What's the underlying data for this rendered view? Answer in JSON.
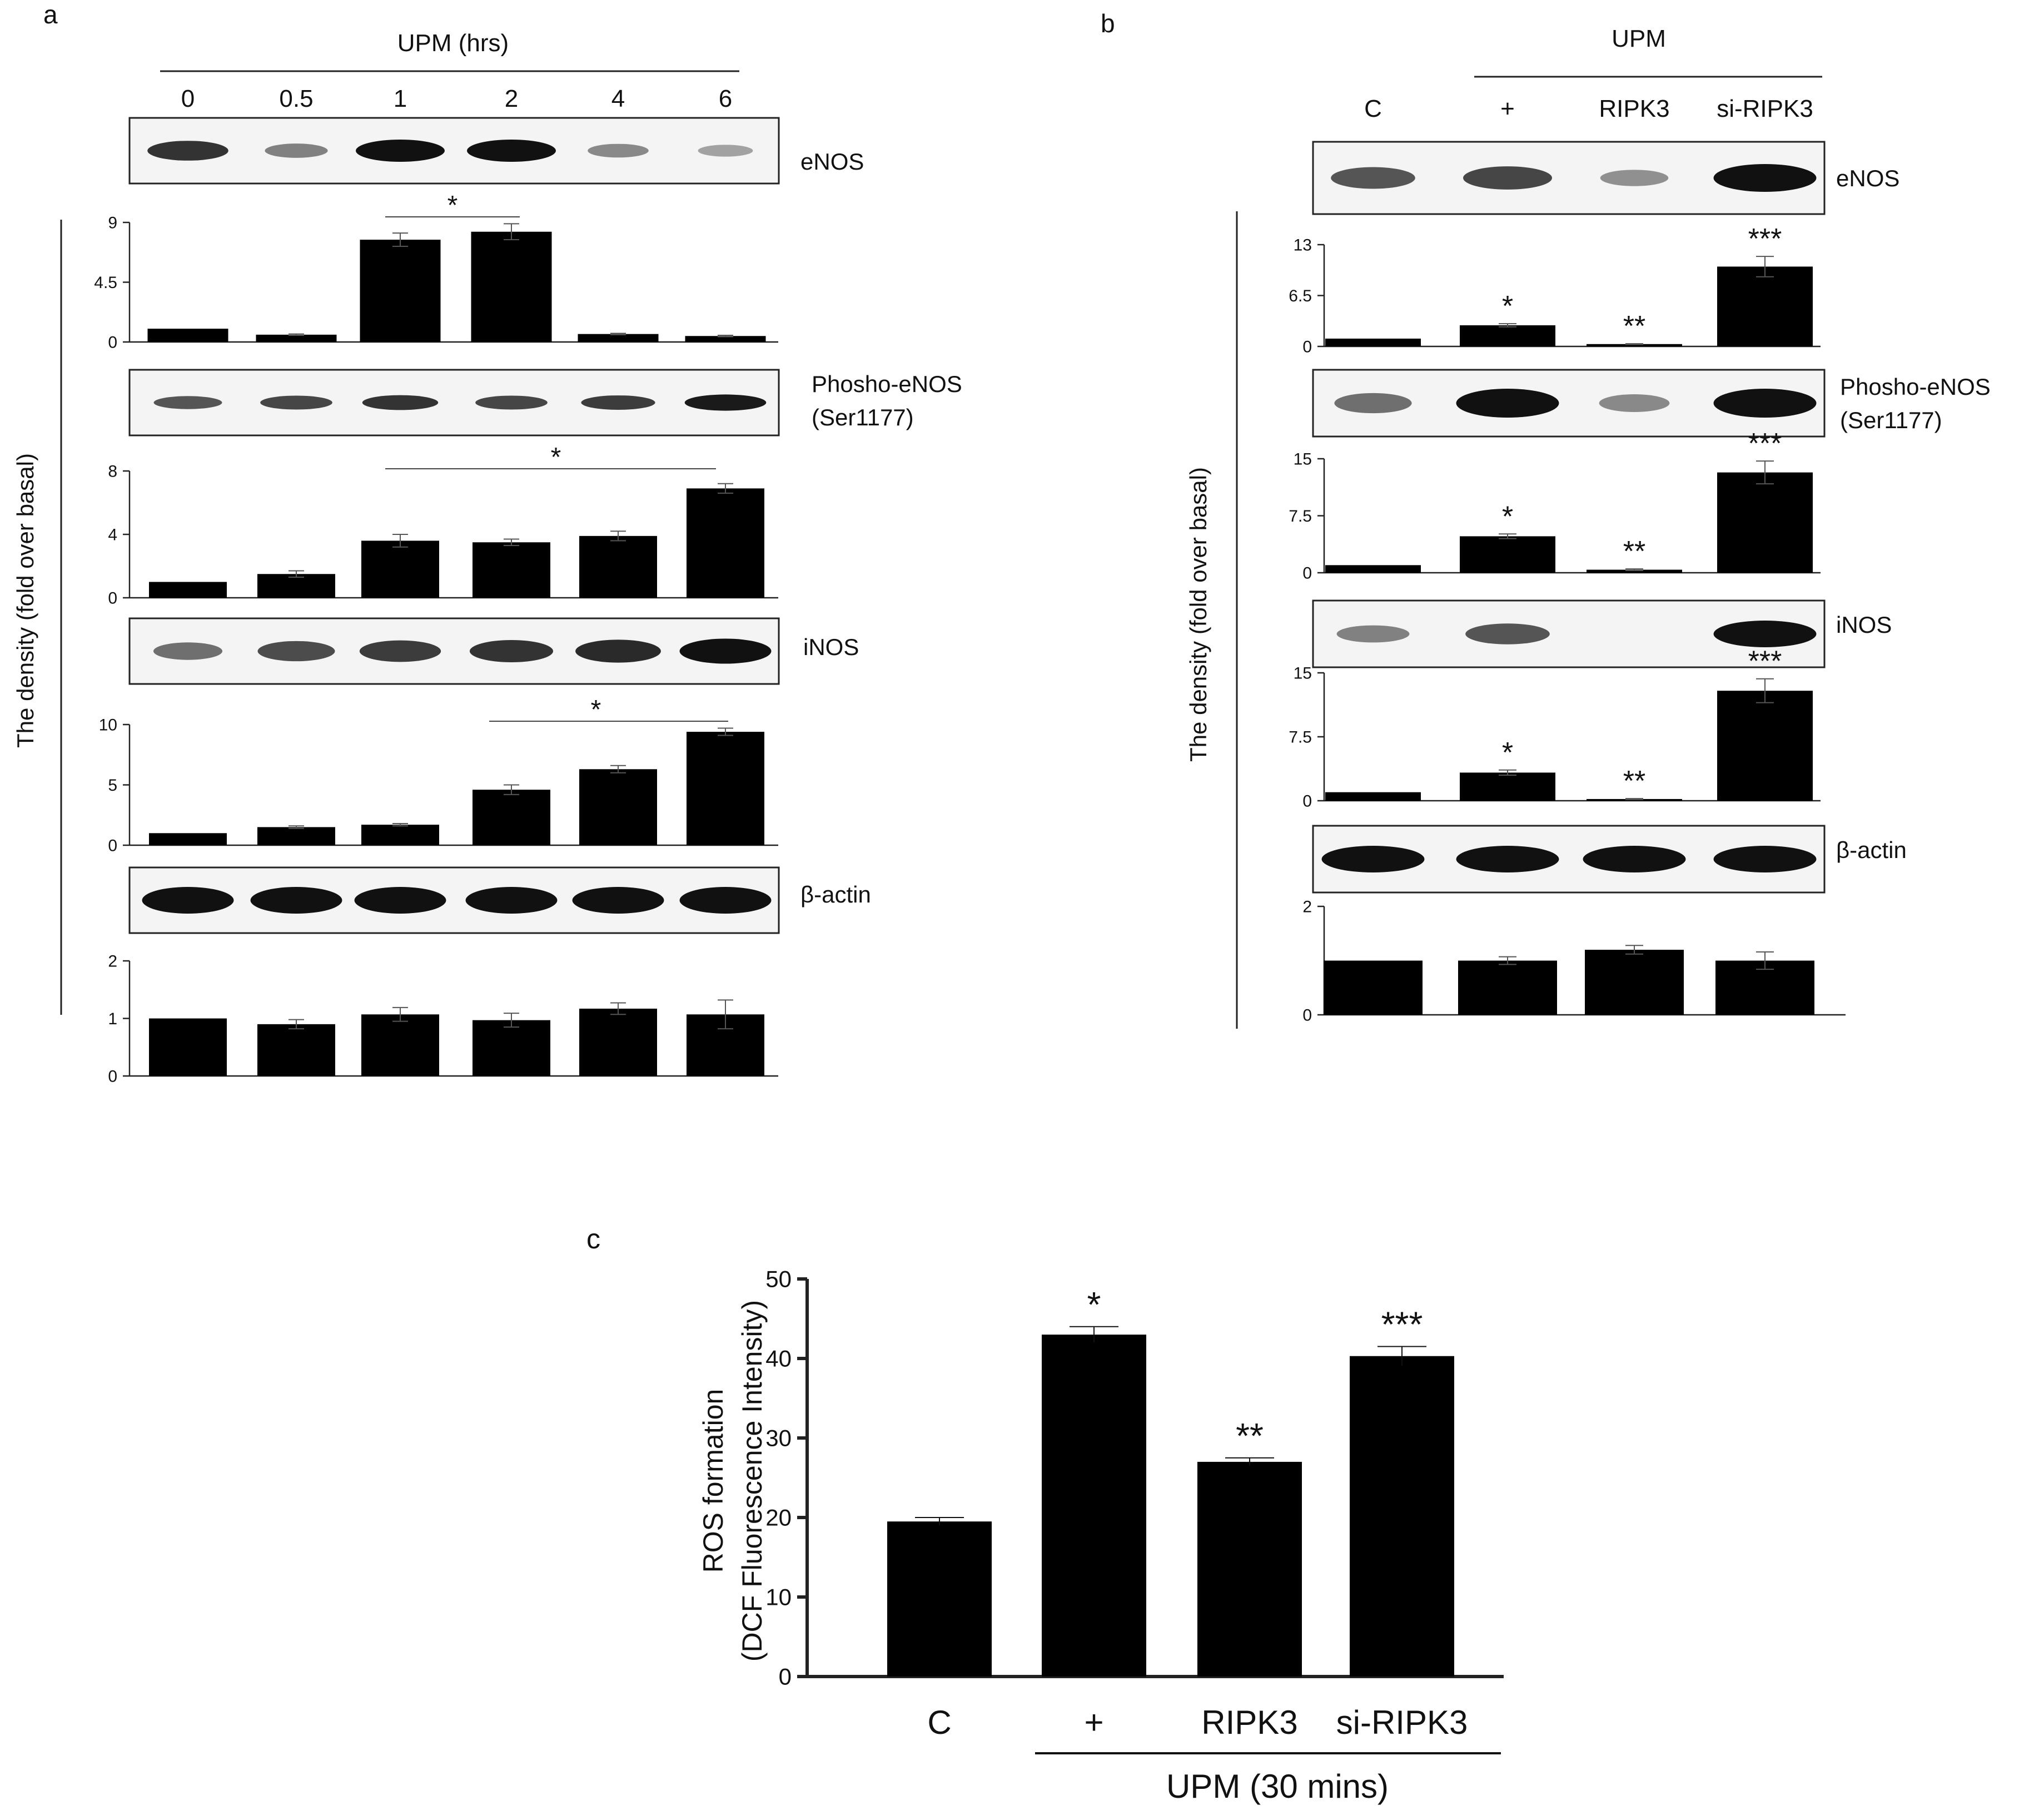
{
  "panel_labels": {
    "a": "a",
    "b": "b",
    "c": "c"
  },
  "y_label_ab": "The density (fold over basal)",
  "panel_a": {
    "treatment_label": "UPM (hrs)",
    "lanes": [
      "0",
      "0.5",
      "1",
      "2",
      "4",
      "6"
    ],
    "blot_labels": {
      "enos": "eNOS",
      "p_enos_1": "Phosho-eNOS",
      "p_enos_2": "(Ser1177)",
      "inos": "iNOS",
      "actin": "β-actin"
    },
    "significance": {
      "enos": "*",
      "p_enos": "*",
      "inos": "*"
    }
  },
  "panel_b": {
    "treatment_label": "UPM",
    "lanes": [
      "C",
      "+",
      "RIPK3",
      "si-RIPK3"
    ],
    "blot_labels": {
      "enos": "eNOS",
      "p_enos_1": "Phosho-eNOS",
      "p_enos_2": "(Ser1177)",
      "inos": "iNOS",
      "actin": "β-actin"
    },
    "significance": {
      "enos": [
        "",
        "*",
        "**",
        "***"
      ],
      "p_enos": [
        "",
        "*",
        "**",
        "***"
      ],
      "inos": [
        "",
        "*",
        "**",
        "***"
      ]
    }
  },
  "panel_c": {
    "ylabel_line1": "ROS formation",
    "ylabel_line2": "(DCF Fluorescence Intensity)",
    "xlabel": "UPM (30 mins)",
    "significance": [
      "",
      "*",
      "**",
      "***"
    ]
  },
  "chart_data": [
    {
      "type": "bar",
      "panel": "a",
      "measure": "eNOS",
      "categories": [
        "0",
        "0.5",
        "1",
        "2",
        "4",
        "6"
      ],
      "values": [
        1.0,
        0.55,
        7.7,
        8.3,
        0.6,
        0.45
      ],
      "errors": [
        0,
        0.05,
        0.5,
        0.6,
        0.05,
        0.05
      ],
      "ylim": [
        0,
        9
      ],
      "yticks": [
        "0",
        "4.5",
        "9"
      ]
    },
    {
      "type": "bar",
      "panel": "a",
      "measure": "Phosho-eNOS (Ser1177)",
      "categories": [
        "0",
        "0.5",
        "1",
        "2",
        "4",
        "6"
      ],
      "values": [
        1.0,
        1.5,
        3.6,
        3.5,
        3.9,
        6.9
      ],
      "errors": [
        0,
        0.2,
        0.4,
        0.2,
        0.3,
        0.3
      ],
      "ylim": [
        0,
        8
      ],
      "yticks": [
        "0",
        "4",
        "8"
      ]
    },
    {
      "type": "bar",
      "panel": "a",
      "measure": "iNOS",
      "categories": [
        "0",
        "0.5",
        "1",
        "2",
        "4",
        "6"
      ],
      "values": [
        1.0,
        1.5,
        1.7,
        4.6,
        6.3,
        9.4
      ],
      "errors": [
        0,
        0.1,
        0.1,
        0.4,
        0.3,
        0.3
      ],
      "ylim": [
        0,
        10
      ],
      "yticks": [
        "0",
        "5",
        "10"
      ]
    },
    {
      "type": "bar",
      "panel": "a",
      "measure": "β-actin",
      "categories": [
        "0",
        "0.5",
        "1",
        "2",
        "4",
        "6"
      ],
      "values": [
        1.0,
        0.9,
        1.07,
        0.97,
        1.17,
        1.07
      ],
      "errors": [
        0,
        0.08,
        0.12,
        0.12,
        0.1,
        0.25
      ],
      "ylim": [
        0,
        2
      ],
      "yticks": [
        "0",
        "1",
        "2"
      ]
    },
    {
      "type": "bar",
      "panel": "b",
      "measure": "eNOS",
      "categories": [
        "C",
        "+",
        "RIPK3",
        "si-RIPK3"
      ],
      "values": [
        1.0,
        2.7,
        0.3,
        10.2
      ],
      "errors": [
        0,
        0.2,
        0.05,
        1.3
      ],
      "ylim": [
        0,
        13
      ],
      "yticks": [
        "0",
        "6.5",
        "13"
      ]
    },
    {
      "type": "bar",
      "panel": "b",
      "measure": "Phosho-eNOS (Ser1177)",
      "categories": [
        "C",
        "+",
        "RIPK3",
        "si-RIPK3"
      ],
      "values": [
        1.0,
        4.8,
        0.4,
        13.2
      ],
      "errors": [
        0,
        0.3,
        0.1,
        1.5
      ],
      "ylim": [
        0,
        15
      ],
      "yticks": [
        "0",
        "7.5",
        "15"
      ]
    },
    {
      "type": "bar",
      "panel": "b",
      "measure": "iNOS",
      "categories": [
        "C",
        "+",
        "RIPK3",
        "si-RIPK3"
      ],
      "values": [
        1.0,
        3.3,
        0.2,
        12.9
      ],
      "errors": [
        0,
        0.3,
        0.05,
        1.4
      ],
      "ylim": [
        0,
        15
      ],
      "yticks": [
        "0",
        "7.5",
        "15"
      ]
    },
    {
      "type": "bar",
      "panel": "b",
      "measure": "β-actin",
      "categories": [
        "C",
        "+",
        "RIPK3",
        "si-RIPK3"
      ],
      "values": [
        1.0,
        1.0,
        1.2,
        1.0
      ],
      "errors": [
        0,
        0.07,
        0.08,
        0.16
      ],
      "ylim": [
        0,
        2
      ],
      "yticks": [
        "0",
        "2"
      ]
    },
    {
      "type": "bar",
      "panel": "c",
      "categories": [
        "C",
        "+",
        "RIPK3",
        "si-RIPK3"
      ],
      "values": [
        19.5,
        43.0,
        27.0,
        40.3
      ],
      "errors": [
        0.5,
        1.0,
        0.5,
        1.2
      ],
      "ylim": [
        0,
        50
      ],
      "yticks": [
        "0",
        "10",
        "20",
        "30",
        "40",
        "50"
      ],
      "ylabel": "ROS formation (DCF Fluorescence Intensity)",
      "xlabel": "UPM (30 mins)"
    }
  ],
  "blots": {
    "a": {
      "enos": [
        0.8,
        0.35,
        1.0,
        1.0,
        0.3,
        0.15
      ],
      "p_enos": [
        0.6,
        0.7,
        0.8,
        0.7,
        0.75,
        0.95
      ],
      "inos": [
        0.45,
        0.65,
        0.75,
        0.8,
        0.85,
        1.0
      ],
      "actin": [
        1.0,
        1.0,
        1.0,
        1.0,
        1.0,
        1.0
      ]
    },
    "b": {
      "enos": [
        0.6,
        0.7,
        0.25,
        1.0
      ],
      "p_enos": [
        0.45,
        1.0,
        0.3,
        1.0
      ],
      "inos": [
        0.35,
        0.6,
        0.0,
        1.0
      ],
      "actin": [
        1.0,
        1.0,
        1.0,
        1.0
      ]
    }
  }
}
